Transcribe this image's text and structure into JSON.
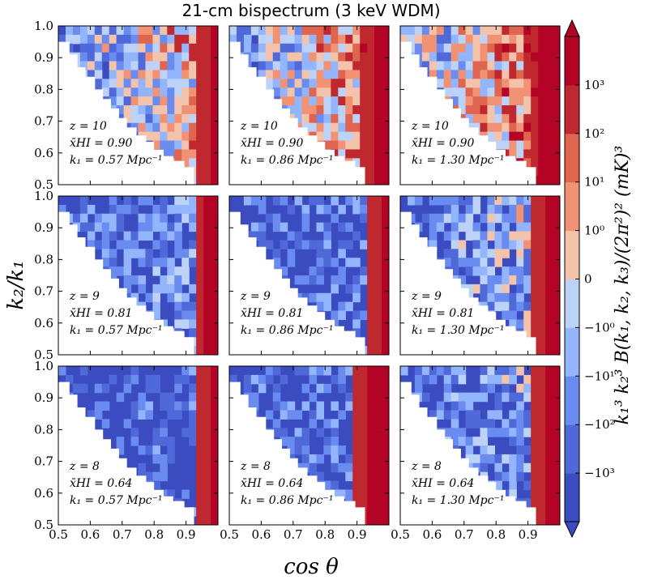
{
  "chart_data": {
    "type": "heatmap",
    "title": "21-cm bispectrum (3 keV WDM)",
    "xlabel": "cos θ",
    "ylabel": "k₂/k₁",
    "colorbar_label": "k₁³ k₂³ B(k₁, k₂, k₃)/(2π²)² (mK)³",
    "xlim": [
      0.5,
      1.0
    ],
    "ylim": [
      0.5,
      1.0
    ],
    "x_ticks": [
      "0.5",
      "0.6",
      "0.7",
      "0.8",
      "0.9"
    ],
    "y_ticks": [
      "0.5",
      "0.6",
      "0.7",
      "0.8",
      "0.9",
      "1.0"
    ],
    "colorbar_ticks": [
      "10³",
      "10²",
      "10¹",
      "10⁰",
      "0",
      "−10⁰",
      "−10¹",
      "−10²",
      "−10³"
    ],
    "colorbar_colors": [
      "#3b4cc0",
      "#4f69d9",
      "#6a8bef",
      "#93b5fe",
      "#bcd2f7",
      "#f3c3ab",
      "#f29274",
      "#e0654f",
      "#c0282f",
      "#b40426"
    ],
    "panels": [
      {
        "row": 0,
        "col": 0,
        "z": "z = 10",
        "xhi": "x̄HI = 0.90",
        "k1": "k₁ = 0.57 Mpc⁻¹",
        "level": 0.55,
        "edge": 0.95
      },
      {
        "row": 0,
        "col": 1,
        "z": "z = 10",
        "xhi": "x̄HI = 0.90",
        "k1": "k₁ = 0.86 Mpc⁻¹",
        "level": 0.65,
        "edge": 0.9
      },
      {
        "row": 0,
        "col": 2,
        "z": "z = 10",
        "xhi": "x̄HI = 0.90",
        "k1": "k₁ = 1.30 Mpc⁻¹",
        "level": 0.75,
        "edge": 0.88
      },
      {
        "row": 1,
        "col": 0,
        "z": "z = 9",
        "xhi": "x̄HI = 0.81",
        "k1": "k₁ = 0.57 Mpc⁻¹",
        "level": 0.2,
        "edge": 0.93
      },
      {
        "row": 1,
        "col": 1,
        "z": "z = 9",
        "xhi": "x̄HI = 0.81",
        "k1": "k₁ = 0.86 Mpc⁻¹",
        "level": 0.12,
        "edge": 0.95
      },
      {
        "row": 1,
        "col": 2,
        "z": "z = 9",
        "xhi": "x̄HI = 0.81",
        "k1": "k₁ = 1.30 Mpc⁻¹",
        "level": 0.35,
        "edge": 0.92
      },
      {
        "row": 2,
        "col": 0,
        "z": "z = 8",
        "xhi": "x̄HI = 0.64",
        "k1": "k₁ = 0.57 Mpc⁻¹",
        "level": 0.05,
        "edge": 0.95
      },
      {
        "row": 2,
        "col": 1,
        "z": "z = 8",
        "xhi": "x̄HI = 0.64",
        "k1": "k₁ = 0.86 Mpc⁻¹",
        "level": 0.12,
        "edge": 0.86
      },
      {
        "row": 2,
        "col": 2,
        "z": "z = 8",
        "xhi": "x̄HI = 0.64",
        "k1": "k₁ = 1.30 Mpc⁻¹",
        "level": 0.25,
        "edge": 0.9
      }
    ]
  }
}
